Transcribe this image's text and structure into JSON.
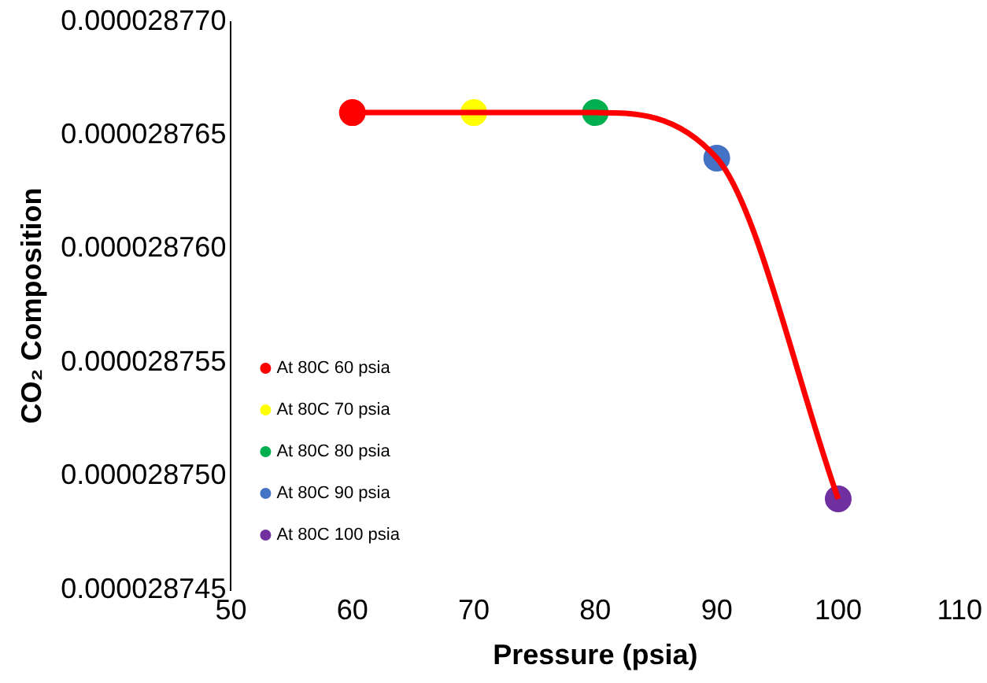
{
  "chart_data": {
    "type": "scatter",
    "xlabel": "Pressure (psia)",
    "ylabel": "CO₂ Composition",
    "xlim": [
      50,
      110
    ],
    "xticks": [
      50,
      60,
      70,
      80,
      90,
      100,
      110
    ],
    "ylim": [
      2.8745e-05,
      2.877e-05
    ],
    "yticks": [
      {
        "value": 2.8745e-05,
        "label": "0.000028745"
      },
      {
        "value": 2.875e-05,
        "label": "0.000028750"
      },
      {
        "value": 2.8755e-05,
        "label": "0.000028755"
      },
      {
        "value": 2.876e-05,
        "label": "0.000028760"
      },
      {
        "value": 2.8765e-05,
        "label": "0.000028765"
      },
      {
        "value": 2.877e-05,
        "label": "0.000028770"
      }
    ],
    "grid": false,
    "legend": "left",
    "marker": "circle",
    "series": [
      {
        "type": "line",
        "marker": "none",
        "color": "#ff0000",
        "x": [
          60,
          70,
          80,
          90,
          100
        ],
        "values": [
          2.8766e-05,
          2.8766e-05,
          2.8766e-05,
          2.8764e-05,
          2.8749e-05
        ]
      },
      {
        "name": "At 80C 60 psia",
        "color": "#ff0000",
        "x": [
          60
        ],
        "values": [
          2.8766e-05
        ]
      },
      {
        "name": "At 80C 70 psia",
        "color": "#ffff00",
        "x": [
          70
        ],
        "values": [
          2.8766e-05
        ]
      },
      {
        "name": "At 80C 80 psia",
        "color": "#00b050",
        "x": [
          80
        ],
        "values": [
          2.8766e-05
        ]
      },
      {
        "name": "At 80C 90 psia",
        "color": "#4472c4",
        "x": [
          90
        ],
        "values": [
          2.8764e-05
        ]
      },
      {
        "name": "At 80C 100 psia",
        "color": "#7030a0",
        "x": [
          100
        ],
        "values": [
          2.8749e-05
        ]
      }
    ]
  }
}
